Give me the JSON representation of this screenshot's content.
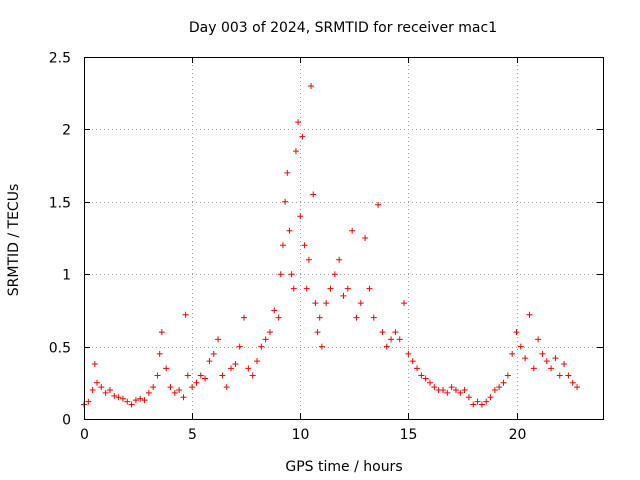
{
  "chart_data": {
    "type": "scatter",
    "title": "Day 003 of 2024, SRMTID for receiver mac1",
    "xlabel": "GPS time / hours",
    "ylabel": "SRMTID / TECUs",
    "xlim": [
      0,
      24
    ],
    "ylim": [
      0,
      2.5
    ],
    "xticks": [
      0,
      5,
      10,
      15,
      20
    ],
    "xtick_labels": [
      "0",
      "5",
      "10",
      "15",
      "20"
    ],
    "yticks": [
      0,
      0.5,
      1,
      1.5,
      2,
      2.5
    ],
    "ytick_labels": [
      "0",
      "0.5",
      "1",
      "1.5",
      "2",
      "2.5"
    ],
    "grid": true,
    "marker": "+",
    "color": "#ff0000",
    "series": [
      {
        "name": "SRMTID",
        "x": [
          0.0,
          0.2,
          0.4,
          0.5,
          0.6,
          0.8,
          1.0,
          1.2,
          1.4,
          1.6,
          1.8,
          2.0,
          2.2,
          2.4,
          2.6,
          2.8,
          3.0,
          3.2,
          3.4,
          3.5,
          3.6,
          3.8,
          4.0,
          4.2,
          4.4,
          4.6,
          4.7,
          4.8,
          5.0,
          5.2,
          5.4,
          5.6,
          5.8,
          6.0,
          6.2,
          6.4,
          6.6,
          6.8,
          7.0,
          7.2,
          7.4,
          7.6,
          7.8,
          8.0,
          8.2,
          8.4,
          8.6,
          8.8,
          9.0,
          9.1,
          9.2,
          9.3,
          9.4,
          9.5,
          9.6,
          9.7,
          9.8,
          9.9,
          10.0,
          10.1,
          10.2,
          10.3,
          10.4,
          10.5,
          10.6,
          10.7,
          10.8,
          10.9,
          11.0,
          11.2,
          11.4,
          11.6,
          11.8,
          12.0,
          12.2,
          12.4,
          12.6,
          12.8,
          13.0,
          13.2,
          13.4,
          13.6,
          13.8,
          14.0,
          14.2,
          14.4,
          14.6,
          14.8,
          15.0,
          15.2,
          15.4,
          15.6,
          15.8,
          16.0,
          16.2,
          16.4,
          16.6,
          16.8,
          17.0,
          17.2,
          17.4,
          17.6,
          17.8,
          18.0,
          18.2,
          18.4,
          18.6,
          18.8,
          19.0,
          19.2,
          19.4,
          19.6,
          19.8,
          20.0,
          20.2,
          20.4,
          20.6,
          20.8,
          21.0,
          21.2,
          21.4,
          21.6,
          21.8,
          22.0,
          22.2,
          22.4,
          22.6,
          22.8
        ],
        "y": [
          0.1,
          0.12,
          0.2,
          0.38,
          0.25,
          0.22,
          0.18,
          0.2,
          0.16,
          0.15,
          0.14,
          0.12,
          0.1,
          0.13,
          0.14,
          0.13,
          0.18,
          0.22,
          0.3,
          0.45,
          0.6,
          0.35,
          0.22,
          0.18,
          0.2,
          0.15,
          0.72,
          0.3,
          0.22,
          0.25,
          0.3,
          0.28,
          0.4,
          0.45,
          0.55,
          0.3,
          0.22,
          0.35,
          0.38,
          0.5,
          0.7,
          0.35,
          0.3,
          0.4,
          0.5,
          0.55,
          0.6,
          0.75,
          0.7,
          1.0,
          1.2,
          1.5,
          1.7,
          1.3,
          1.0,
          0.9,
          1.85,
          2.05,
          1.4,
          1.95,
          1.2,
          0.9,
          1.1,
          2.3,
          1.55,
          0.8,
          0.6,
          0.7,
          0.5,
          0.8,
          0.9,
          1.0,
          1.1,
          0.85,
          0.9,
          1.3,
          0.7,
          0.8,
          1.25,
          0.9,
          0.7,
          1.48,
          0.6,
          0.5,
          0.55,
          0.6,
          0.55,
          0.8,
          0.45,
          0.4,
          0.35,
          0.3,
          0.28,
          0.25,
          0.22,
          0.2,
          0.2,
          0.18,
          0.22,
          0.2,
          0.18,
          0.2,
          0.15,
          0.1,
          0.12,
          0.1,
          0.12,
          0.15,
          0.2,
          0.22,
          0.25,
          0.3,
          0.45,
          0.6,
          0.5,
          0.42,
          0.72,
          0.35,
          0.55,
          0.45,
          0.4,
          0.35,
          0.42,
          0.3,
          0.38,
          0.3,
          0.25,
          0.22
        ]
      }
    ]
  }
}
